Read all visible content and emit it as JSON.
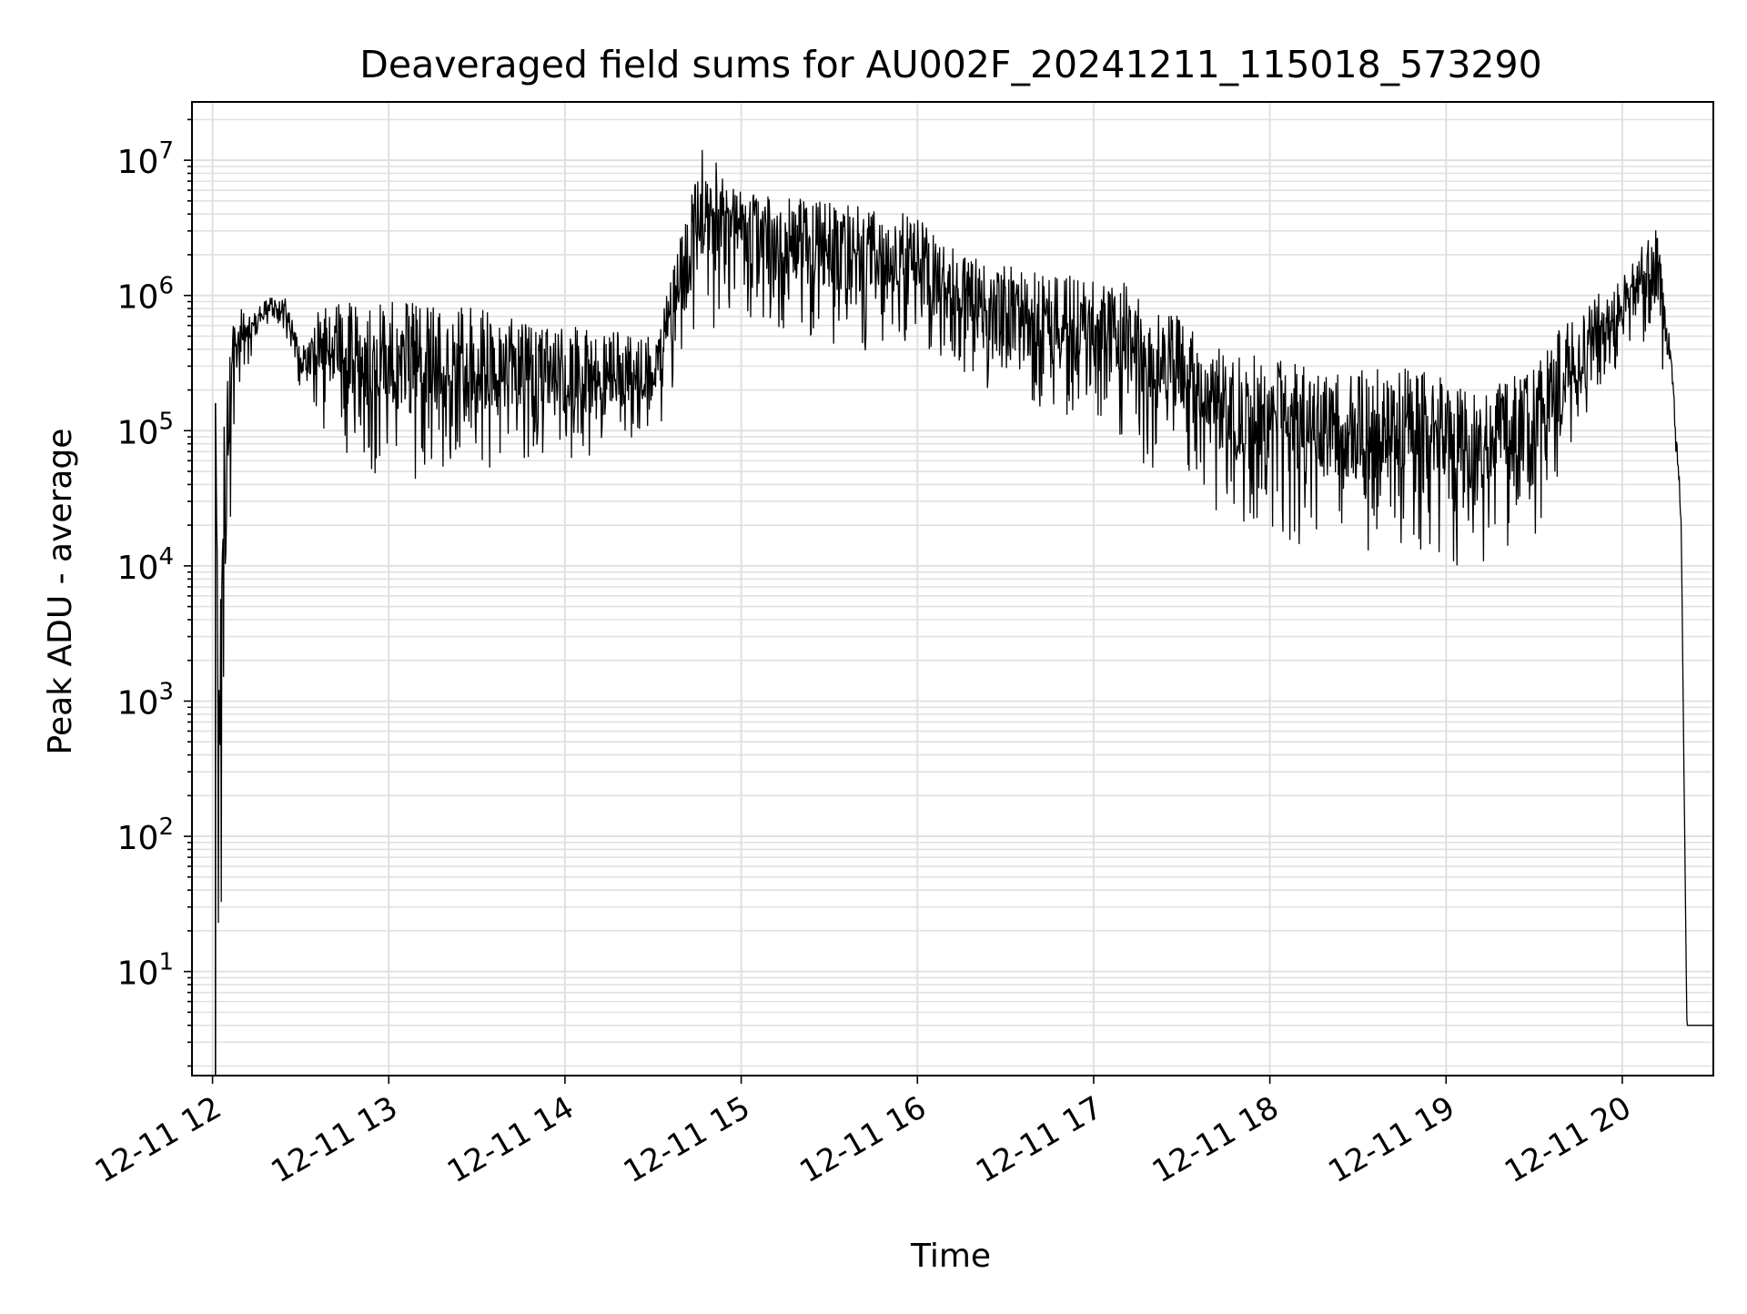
{
  "chart_data": {
    "type": "line",
    "title": "Deaveraged field sums for AU002F_20241211_115018_573290",
    "xlabel": "Time",
    "ylabel": "Peak ADU - average",
    "yscale": "log",
    "ylim": [
      1.7,
      27000000
    ],
    "xlim": [
      "2024-12-11 11:53",
      "2024-12-11 20:31"
    ],
    "grid": true,
    "line_color": "#000000",
    "grid_color": "#e0e0e0",
    "x_ticks": [
      {
        "time": "2024-12-11 12:00",
        "label": "12-11 12"
      },
      {
        "time": "2024-12-11 13:00",
        "label": "12-11 13"
      },
      {
        "time": "2024-12-11 14:00",
        "label": "12-11 14"
      },
      {
        "time": "2024-12-11 15:00",
        "label": "12-11 15"
      },
      {
        "time": "2024-12-11 16:00",
        "label": "12-11 16"
      },
      {
        "time": "2024-12-11 17:00",
        "label": "12-11 17"
      },
      {
        "time": "2024-12-11 18:00",
        "label": "12-11 18"
      },
      {
        "time": "2024-12-11 19:00",
        "label": "12-11 19"
      },
      {
        "time": "2024-12-11 20:00",
        "label": "12-11 20"
      }
    ],
    "y_ticks": [
      {
        "value": 10,
        "base": "10",
        "exp": "1"
      },
      {
        "value": 100,
        "base": "10",
        "exp": "2"
      },
      {
        "value": 1000,
        "base": "10",
        "exp": "3"
      },
      {
        "value": 10000,
        "base": "10",
        "exp": "4"
      },
      {
        "value": 100000,
        "base": "10",
        "exp": "5"
      },
      {
        "value": 1000000,
        "base": "10",
        "exp": "6"
      },
      {
        "value": 10000000,
        "base": "10",
        "exp": "7"
      }
    ],
    "series": [
      {
        "description_level": "upper envelope of peaks",
        "points": [
          [
            "2024-12-11 12:01",
            160000
          ],
          [
            "2024-12-11 12:04",
            200000
          ],
          [
            "2024-12-11 12:07",
            800000
          ],
          [
            "2024-12-11 12:15",
            800000
          ],
          [
            "2024-12-11 12:20",
            1000000
          ],
          [
            "2024-12-11 12:25",
            950000
          ],
          [
            "2024-12-11 12:30",
            400000
          ],
          [
            "2024-12-11 12:38",
            1000000
          ],
          [
            "2024-12-11 13:00",
            1000000
          ],
          [
            "2024-12-11 13:30",
            800000
          ],
          [
            "2024-12-11 14:00",
            600000
          ],
          [
            "2024-12-11 14:30",
            500000
          ],
          [
            "2024-12-11 14:45",
            8000000
          ],
          [
            "2024-12-11 14:47",
            13000000
          ],
          [
            "2024-12-11 15:00",
            6000000
          ],
          [
            "2024-12-11 15:30",
            5000000
          ],
          [
            "2024-12-11 16:00",
            4000000
          ],
          [
            "2024-12-11 16:15",
            2000000
          ],
          [
            "2024-12-11 16:45",
            1500000
          ],
          [
            "2024-12-11 17:15",
            1200000
          ],
          [
            "2024-12-11 17:45",
            400000
          ],
          [
            "2024-12-11 18:15",
            300000
          ],
          [
            "2024-12-11 18:45",
            300000
          ],
          [
            "2024-12-11 19:15",
            200000
          ],
          [
            "2024-12-11 19:40",
            600000
          ],
          [
            "2024-12-11 20:05",
            2000000
          ],
          [
            "2024-12-11 20:12",
            4000000
          ],
          [
            "2024-12-11 20:17",
            300000
          ],
          [
            "2024-12-11 20:20",
            30000
          ],
          [
            "2024-12-11 20:22",
            4
          ],
          [
            "2024-12-11 20:31",
            4
          ]
        ]
      },
      {
        "description_level": "lower envelope of troughs",
        "points": [
          [
            "2024-12-11 12:01",
            20000
          ],
          [
            "2024-12-11 12:02",
            4
          ],
          [
            "2024-12-11 12:03",
            4
          ],
          [
            "2024-12-11 12:05",
            5000
          ],
          [
            "2024-12-11 12:08",
            200000
          ],
          [
            "2024-12-11 12:20",
            700000
          ],
          [
            "2024-12-11 12:25",
            500000
          ],
          [
            "2024-12-11 12:30",
            200000
          ],
          [
            "2024-12-11 12:40",
            80000
          ],
          [
            "2024-12-11 13:00",
            40000
          ],
          [
            "2024-12-11 13:30",
            50000
          ],
          [
            "2024-12-11 14:00",
            60000
          ],
          [
            "2024-12-11 14:30",
            80000
          ],
          [
            "2024-12-11 14:45",
            400000
          ],
          [
            "2024-12-11 15:00",
            700000
          ],
          [
            "2024-12-11 15:30",
            400000
          ],
          [
            "2024-12-11 16:00",
            300000
          ],
          [
            "2024-12-11 16:30",
            150000
          ],
          [
            "2024-12-11 17:00",
            100000
          ],
          [
            "2024-12-11 17:30",
            30000
          ],
          [
            "2024-12-11 18:00",
            15000
          ],
          [
            "2024-12-11 18:30",
            12000
          ],
          [
            "2024-12-11 19:00",
            12000
          ],
          [
            "2024-12-11 19:05",
            8000
          ],
          [
            "2024-12-11 19:30",
            15000
          ],
          [
            "2024-12-11 19:45",
            100000
          ],
          [
            "2024-12-11 20:05",
            500000
          ],
          [
            "2024-12-11 20:17",
            200000
          ],
          [
            "2024-12-11 20:20",
            15000
          ],
          [
            "2024-12-11 20:22",
            4
          ],
          [
            "2024-12-11 20:31",
            4
          ]
        ]
      }
    ]
  }
}
